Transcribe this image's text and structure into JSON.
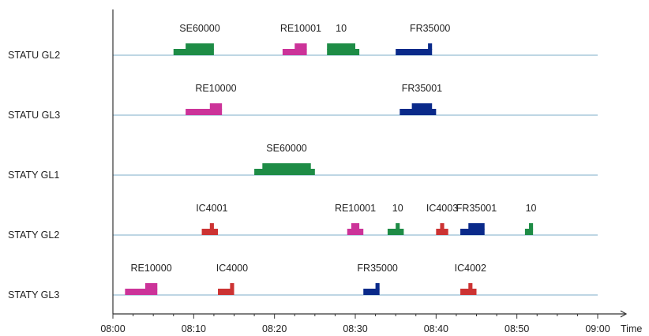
{
  "chart_data": {
    "type": "gantt",
    "xlabel": "Time",
    "x_ticks": [
      "08:00",
      "08:10",
      "08:20",
      "08:30",
      "08:40",
      "08:50",
      "09:00"
    ],
    "xlim": [
      "08:00",
      "09:00"
    ],
    "grid": false,
    "colors": {
      "green": "#1e8c46",
      "magenta": "#cc3399",
      "navy": "#0a2a8a",
      "red": "#cc3333",
      "track": "#a9c9dc",
      "axis": "#333333"
    },
    "tracks": [
      {
        "name": "STATU GL2",
        "trains": [
          {
            "label": "SE60000",
            "color": "green",
            "start": "08:07.5",
            "end": "08:12.5",
            "core_start": "08:09.0",
            "core_end": "08:12.5"
          },
          {
            "label": "RE10001",
            "color": "magenta",
            "start": "08:21.0",
            "end": "08:24.0",
            "core_start": "08:22.5",
            "core_end": "08:24.0"
          },
          {
            "label": "10",
            "color": "green",
            "start": "08:26.5",
            "end": "08:30.5",
            "core_start": "08:26.5",
            "core_end": "08:30.0"
          },
          {
            "label": "FR35000",
            "color": "navy",
            "start": "08:35.0",
            "end": "08:39.5",
            "core_start": "08:39.0",
            "core_end": "08:39.5"
          }
        ]
      },
      {
        "name": "STATU GL3",
        "trains": [
          {
            "label": "RE10000",
            "color": "magenta",
            "start": "08:09.0",
            "end": "08:13.5",
            "core_start": "08:12.0",
            "core_end": "08:13.5"
          },
          {
            "label": "FR35001",
            "color": "navy",
            "start": "08:35.5",
            "end": "08:40.0",
            "core_start": "08:37.0",
            "core_end": "08:39.5"
          }
        ]
      },
      {
        "name": "STATY GL1",
        "trains": [
          {
            "label": "SE60000",
            "color": "green",
            "start": "08:17.5",
            "end": "08:25.0",
            "core_start": "08:18.5",
            "core_end": "08:24.5"
          }
        ]
      },
      {
        "name": "STATY GL2",
        "trains": [
          {
            "label": "IC4001",
            "color": "red",
            "start": "08:11.0",
            "end": "08:13.0",
            "core_start": "08:12.0",
            "core_end": "08:12.5"
          },
          {
            "label": "RE10001",
            "color": "magenta",
            "start": "08:29.0",
            "end": "08:31.0",
            "core_start": "08:29.5",
            "core_end": "08:30.5"
          },
          {
            "label": "10",
            "color": "green",
            "start": "08:34.0",
            "end": "08:36.0",
            "core_start": "08:35.0",
            "core_end": "08:35.5"
          },
          {
            "label": "IC4003",
            "color": "red",
            "start": "08:40.0",
            "end": "08:41.5",
            "core_start": "08:40.5",
            "core_end": "08:41.0"
          },
          {
            "label": "FR35001",
            "color": "navy",
            "start": "08:43.0",
            "end": "08:46.0",
            "core_start": "08:44.0",
            "core_end": "08:46.0"
          },
          {
            "label": "10",
            "color": "green",
            "start": "08:51.0",
            "end": "08:52.0",
            "core_start": "08:51.5",
            "core_end": "08:52.0"
          }
        ]
      },
      {
        "name": "STATY GL3",
        "trains": [
          {
            "label": "RE10000",
            "color": "magenta",
            "start": "08:01.5",
            "end": "08:05.5",
            "core_start": "08:04.0",
            "core_end": "08:05.5"
          },
          {
            "label": "IC4000",
            "color": "red",
            "start": "08:13.0",
            "end": "08:15.0",
            "core_start": "08:14.5",
            "core_end": "08:15.0"
          },
          {
            "label": "FR35000",
            "color": "navy",
            "start": "08:31.0",
            "end": "08:33.0",
            "core_start": "08:32.5",
            "core_end": "08:33.0"
          },
          {
            "label": "IC4002",
            "color": "red",
            "start": "08:43.0",
            "end": "08:45.0",
            "core_start": "08:44.0",
            "core_end": "08:44.5"
          }
        ]
      }
    ]
  }
}
